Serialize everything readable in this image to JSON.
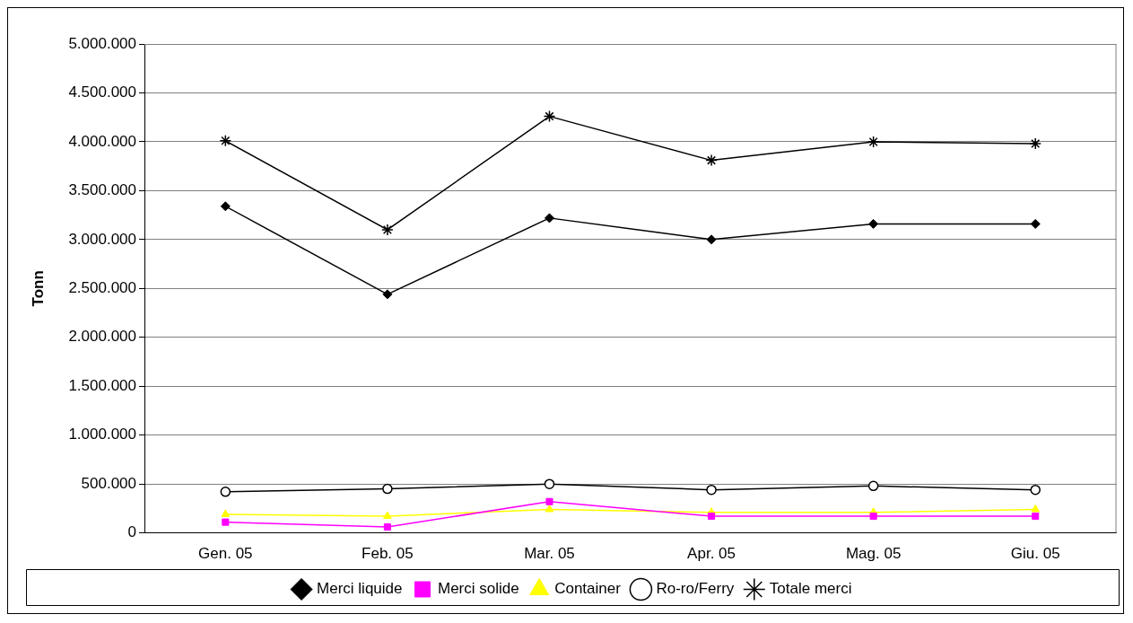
{
  "chart_data": {
    "type": "line",
    "ylabel": "Tonn",
    "categories": [
      "Gen. 05",
      "Feb. 05",
      "Mar. 05",
      "Apr. 05",
      "Mag. 05",
      "Giu. 05"
    ],
    "series": [
      {
        "name": "Merci liquide",
        "color": "#000000",
        "marker": "diamond",
        "values": [
          3340000,
          2440000,
          3220000,
          3000000,
          3160000,
          3160000
        ]
      },
      {
        "name": "Merci solide",
        "color": "#ff00ff",
        "marker": "square",
        "values": [
          110000,
          60000,
          320000,
          170000,
          170000,
          170000
        ]
      },
      {
        "name": "Container",
        "color": "#ffff00",
        "marker": "triangle",
        "values": [
          190000,
          170000,
          240000,
          210000,
          210000,
          240000
        ]
      },
      {
        "name": "Ro-ro/Ferry",
        "color": "#000000",
        "marker": "circle",
        "values": [
          420000,
          450000,
          500000,
          440000,
          480000,
          440000
        ]
      },
      {
        "name": "Totale merci",
        "color": "#000000",
        "marker": "cross",
        "values": [
          4010000,
          3100000,
          4260000,
          3810000,
          4000000,
          3980000
        ]
      }
    ],
    "ylim": [
      0,
      5000000
    ],
    "yticks": [
      {
        "value": 0,
        "label": "0"
      },
      {
        "value": 500000,
        "label": "500.000"
      },
      {
        "value": 1000000,
        "label": "1.000.000"
      },
      {
        "value": 1500000,
        "label": "1.500.000"
      },
      {
        "value": 2000000,
        "label": "2.000.000"
      },
      {
        "value": 2500000,
        "label": "2.500.000"
      },
      {
        "value": 3000000,
        "label": "3.000.000"
      },
      {
        "value": 3500000,
        "label": "3.500.000"
      },
      {
        "value": 4000000,
        "label": "4.000.000"
      },
      {
        "value": 4500000,
        "label": "4.500.000"
      },
      {
        "value": 5000000,
        "label": "5.000.000"
      }
    ],
    "grid": "y",
    "legend": "bottom",
    "line_style": "solid"
  }
}
